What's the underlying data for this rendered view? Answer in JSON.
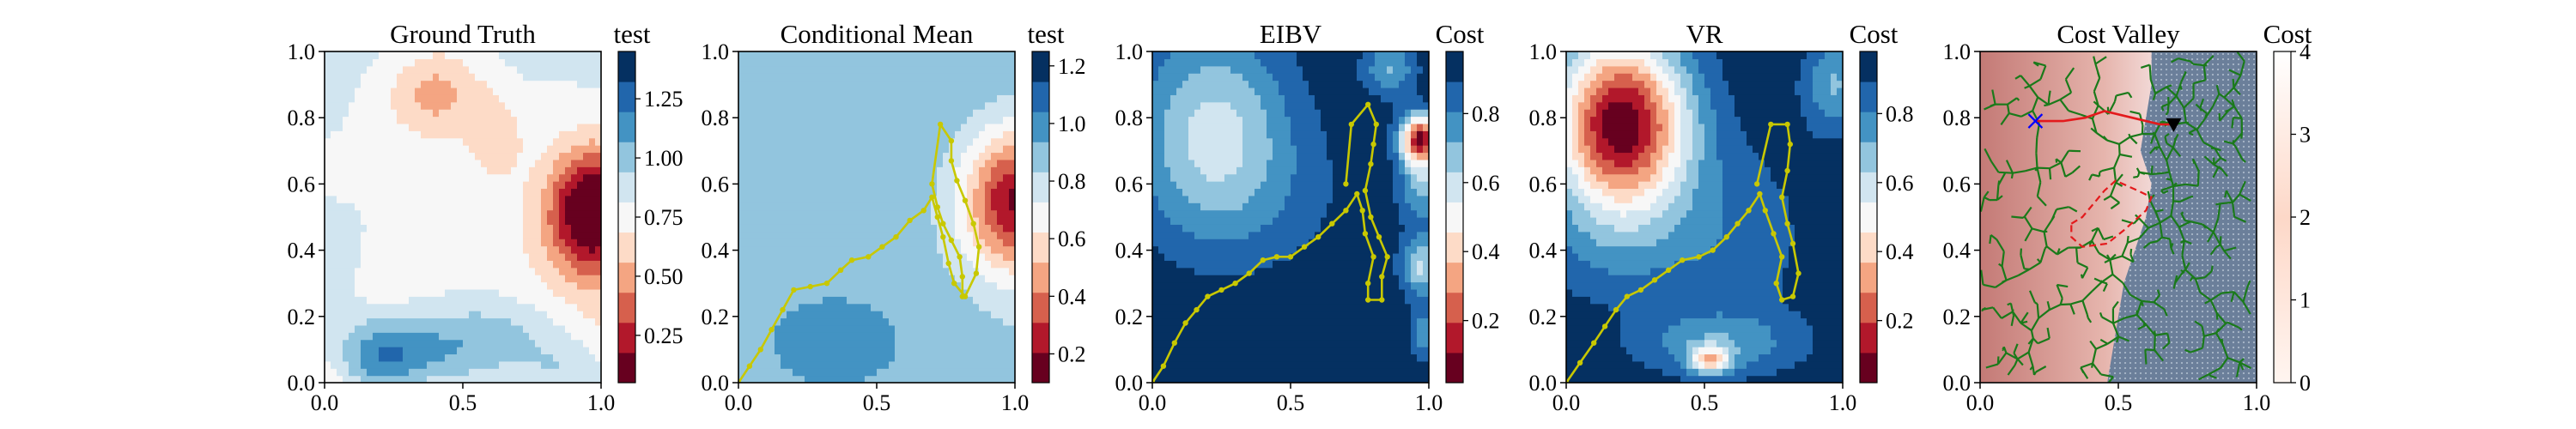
{
  "colors": {
    "rdbu": [
      "#67001f",
      "#b2182b",
      "#d6604d",
      "#f4a582",
      "#fddbc7",
      "#f7f7f7",
      "#d1e5f0",
      "#92c5de",
      "#4393c3",
      "#2166ac",
      "#053061"
    ],
    "path_yellow": "#c8c800",
    "tree_green": "#1a7a1a",
    "optimal_path_red": "#e31a1c",
    "target_marker": "#0000ff",
    "reds_light": "#f7e8e8",
    "reds_dark": "#c47a76",
    "obstacle_hatch": "#6b7f9a"
  },
  "chart_data": [
    {
      "type": "heatmap",
      "title": "Ground Truth",
      "colorbar_label": "test",
      "xlim": [
        0,
        1
      ],
      "ylim": [
        0,
        1
      ],
      "xticks": [
        "0.0",
        "0.5",
        "1.0"
      ],
      "yticks": [
        "0.0",
        "0.2",
        "0.4",
        "0.6",
        "0.8",
        "1.0"
      ],
      "colorbar_ticks": [
        "0.25",
        "0.50",
        "0.75",
        "1.00",
        "1.25"
      ],
      "colorbar_tick_values": [
        0.25,
        0.5,
        0.75,
        1.0,
        1.25
      ],
      "colorbar_range": [
        0.05,
        1.45
      ],
      "colormap": "RdBu",
      "field": {
        "bumps": [
          {
            "x": 0.97,
            "y": 0.52,
            "sx": 0.11,
            "sy": 0.13,
            "a": -0.85
          },
          {
            "x": 0.4,
            "y": 0.88,
            "sx": 0.12,
            "sy": 0.1,
            "a": -0.3
          },
          {
            "x": 0.62,
            "y": 0.75,
            "sx": 0.07,
            "sy": 0.09,
            "a": -0.2
          },
          {
            "x": 0.22,
            "y": 0.08,
            "sx": 0.14,
            "sy": 0.08,
            "a": 0.45
          },
          {
            "x": 0.55,
            "y": 0.12,
            "sx": 0.2,
            "sy": 0.1,
            "a": 0.35
          },
          {
            "x": 0.0,
            "y": 0.35,
            "sx": 0.12,
            "sy": 0.12,
            "a": 0.15
          },
          {
            "x": 0.88,
            "y": 0.02,
            "sx": 0.12,
            "sy": 0.08,
            "a": 0.2
          }
        ],
        "base": 0.78,
        "slope_y": 0.2,
        "noise": 0.05
      }
    },
    {
      "type": "heatmap",
      "title": "Conditional Mean",
      "colorbar_label": "test",
      "xlim": [
        0,
        1
      ],
      "ylim": [
        0,
        1
      ],
      "xticks": [
        "0.0",
        "0.5",
        "1.0"
      ],
      "yticks": [
        "0.0",
        "0.2",
        "0.4",
        "0.6",
        "0.8",
        "1.0"
      ],
      "colorbar_ticks": [
        "0.2",
        "0.4",
        "0.6",
        "0.8",
        "1.0",
        "1.2"
      ],
      "colorbar_tick_values": [
        0.2,
        0.4,
        0.6,
        0.8,
        1.0,
        1.2
      ],
      "colorbar_range": [
        0.1,
        1.25
      ],
      "colormap": "RdBu",
      "field": {
        "bumps": [
          {
            "x": 1.0,
            "y": 0.55,
            "sx": 0.13,
            "sy": 0.15,
            "a": -0.7
          },
          {
            "x": 0.35,
            "y": 0.1,
            "sx": 0.28,
            "sy": 0.16,
            "a": 0.12
          }
        ],
        "base": 0.88,
        "slope_y": 0.08,
        "noise": 0.0
      },
      "path": [
        [
          0,
          0
        ],
        [
          0.04,
          0.05
        ],
        [
          0.08,
          0.1
        ],
        [
          0.12,
          0.16
        ],
        [
          0.16,
          0.22
        ],
        [
          0.2,
          0.28
        ],
        [
          0.26,
          0.29
        ],
        [
          0.32,
          0.3
        ],
        [
          0.37,
          0.34
        ],
        [
          0.41,
          0.37
        ],
        [
          0.47,
          0.38
        ],
        [
          0.52,
          0.41
        ],
        [
          0.57,
          0.44
        ],
        [
          0.62,
          0.49
        ],
        [
          0.67,
          0.52
        ],
        [
          0.7,
          0.56
        ],
        [
          0.72,
          0.5
        ],
        [
          0.74,
          0.44
        ],
        [
          0.76,
          0.36
        ],
        [
          0.78,
          0.3
        ],
        [
          0.82,
          0.26
        ],
        [
          0.86,
          0.33
        ],
        [
          0.87,
          0.41
        ],
        [
          0.85,
          0.48
        ],
        [
          0.82,
          0.55
        ],
        [
          0.79,
          0.61
        ],
        [
          0.77,
          0.67
        ],
        [
          0.77,
          0.73
        ],
        [
          0.73,
          0.78
        ],
        [
          0.7,
          0.6
        ],
        [
          0.72,
          0.53
        ],
        [
          0.74,
          0.48
        ],
        [
          0.77,
          0.43
        ],
        [
          0.8,
          0.38
        ],
        [
          0.81,
          0.32
        ],
        [
          0.81,
          0.26
        ]
      ]
    },
    {
      "type": "heatmap",
      "title": "EIBV",
      "colorbar_label": "Cost",
      "xlim": [
        0,
        1
      ],
      "ylim": [
        0,
        1
      ],
      "xticks": [
        "0.0",
        "0.5",
        "1.0"
      ],
      "yticks": [
        "0.0",
        "0.2",
        "0.4",
        "0.6",
        "0.8",
        "1.0"
      ],
      "colorbar_ticks": [
        "0.2",
        "0.4",
        "0.6",
        "0.8"
      ],
      "colorbar_tick_values": [
        0.2,
        0.4,
        0.6,
        0.8
      ],
      "colorbar_range": [
        0.02,
        0.98
      ],
      "colormap": "RdBu",
      "field": {
        "bumps": [
          {
            "x": 0.22,
            "y": 0.77,
            "sx": 0.2,
            "sy": 0.22,
            "a": -0.35
          },
          {
            "x": 0.38,
            "y": 0.55,
            "sx": 0.3,
            "sy": 0.18,
            "a": -0.08
          },
          {
            "x": 0.97,
            "y": 0.74,
            "sx": 0.05,
            "sy": 0.05,
            "a": -0.75
          },
          {
            "x": 0.98,
            "y": 0.62,
            "sx": 0.06,
            "sy": 0.1,
            "a": -0.3
          },
          {
            "x": 0.97,
            "y": 0.35,
            "sx": 0.05,
            "sy": 0.06,
            "a": -0.35
          },
          {
            "x": 0.98,
            "y": 0.15,
            "sx": 0.04,
            "sy": 0.06,
            "a": -0.2
          },
          {
            "x": 0.86,
            "y": 0.95,
            "sx": 0.07,
            "sy": 0.06,
            "a": -0.25
          }
        ],
        "base": 0.97,
        "slope_y": 0.0,
        "noise": 0.0
      },
      "path": [
        [
          0,
          0
        ],
        [
          0.04,
          0.05
        ],
        [
          0.08,
          0.12
        ],
        [
          0.12,
          0.18
        ],
        [
          0.16,
          0.22
        ],
        [
          0.2,
          0.26
        ],
        [
          0.25,
          0.28
        ],
        [
          0.3,
          0.3
        ],
        [
          0.35,
          0.33
        ],
        [
          0.4,
          0.37
        ],
        [
          0.45,
          0.38
        ],
        [
          0.5,
          0.38
        ],
        [
          0.55,
          0.41
        ],
        [
          0.6,
          0.44
        ],
        [
          0.65,
          0.48
        ],
        [
          0.7,
          0.52
        ],
        [
          0.74,
          0.57
        ],
        [
          0.76,
          0.52
        ],
        [
          0.77,
          0.45
        ],
        [
          0.8,
          0.38
        ],
        [
          0.78,
          0.3
        ],
        [
          0.78,
          0.25
        ],
        [
          0.83,
          0.25
        ],
        [
          0.83,
          0.32
        ],
        [
          0.85,
          0.38
        ],
        [
          0.82,
          0.44
        ],
        [
          0.79,
          0.5
        ],
        [
          0.77,
          0.58
        ],
        [
          0.79,
          0.66
        ],
        [
          0.8,
          0.72
        ],
        [
          0.81,
          0.78
        ],
        [
          0.78,
          0.84
        ],
        [
          0.72,
          0.78
        ],
        [
          0.7,
          0.6
        ]
      ]
    },
    {
      "type": "heatmap",
      "title": "VR",
      "colorbar_label": "Cost",
      "xlim": [
        0,
        1
      ],
      "ylim": [
        0,
        1
      ],
      "xticks": [
        "0.0",
        "0.5",
        "1.0"
      ],
      "yticks": [
        "0.0",
        "0.2",
        "0.4",
        "0.6",
        "0.8",
        "1.0"
      ],
      "colorbar_ticks": [
        "0.2",
        "0.4",
        "0.6",
        "0.8"
      ],
      "colorbar_tick_values": [
        0.2,
        0.4,
        0.6,
        0.8
      ],
      "colorbar_range": [
        0.02,
        0.98
      ],
      "colormap": "RdBu",
      "field": {
        "bumps": [
          {
            "x": 0.2,
            "y": 0.78,
            "sx": 0.17,
            "sy": 0.19,
            "a": -0.92
          },
          {
            "x": 0.6,
            "y": 0.45,
            "sx": 0.2,
            "sy": 0.2,
            "a": -0.12
          },
          {
            "x": 0.15,
            "y": 0.4,
            "sx": 0.22,
            "sy": 0.12,
            "a": -0.1
          },
          {
            "x": 0.52,
            "y": 0.07,
            "sx": 0.05,
            "sy": 0.03,
            "a": -0.45
          },
          {
            "x": 0.55,
            "y": 0.12,
            "sx": 0.22,
            "sy": 0.07,
            "a": -0.2
          },
          {
            "x": 0.97,
            "y": 0.9,
            "sx": 0.08,
            "sy": 0.1,
            "a": -0.25
          }
        ],
        "base": 0.96,
        "slope_y": 0.0,
        "noise": 0.0
      },
      "path": [
        [
          0,
          0
        ],
        [
          0.05,
          0.06
        ],
        [
          0.1,
          0.12
        ],
        [
          0.14,
          0.17
        ],
        [
          0.18,
          0.22
        ],
        [
          0.22,
          0.26
        ],
        [
          0.27,
          0.28
        ],
        [
          0.32,
          0.31
        ],
        [
          0.37,
          0.34
        ],
        [
          0.42,
          0.37
        ],
        [
          0.48,
          0.38
        ],
        [
          0.53,
          0.4
        ],
        [
          0.58,
          0.44
        ],
        [
          0.62,
          0.48
        ],
        [
          0.66,
          0.52
        ],
        [
          0.7,
          0.57
        ],
        [
          0.72,
          0.52
        ],
        [
          0.75,
          0.45
        ],
        [
          0.78,
          0.38
        ],
        [
          0.76,
          0.3
        ],
        [
          0.78,
          0.25
        ],
        [
          0.82,
          0.26
        ],
        [
          0.84,
          0.33
        ],
        [
          0.82,
          0.42
        ],
        [
          0.8,
          0.48
        ],
        [
          0.78,
          0.56
        ],
        [
          0.8,
          0.64
        ],
        [
          0.81,
          0.72
        ],
        [
          0.8,
          0.78
        ],
        [
          0.74,
          0.78
        ],
        [
          0.69,
          0.6
        ]
      ]
    },
    {
      "type": "heatmap",
      "title": "Cost Valley",
      "colorbar_label": "Cost",
      "xlim": [
        0,
        1
      ],
      "ylim": [
        0,
        1
      ],
      "xticks": [
        "0.0",
        "0.5",
        "1.0"
      ],
      "yticks": [
        "0.0",
        "0.2",
        "0.4",
        "0.6",
        "0.8",
        "1.0"
      ],
      "colorbar_ticks": [
        "0",
        "1",
        "2",
        "3",
        "4"
      ],
      "colorbar_tick_values": [
        0,
        1,
        2,
        3,
        4
      ],
      "colorbar_range": [
        0,
        4
      ],
      "colormap": "Reds",
      "start": [
        0.7,
        0.78
      ],
      "target": [
        0.2,
        0.79
      ],
      "optimal_path": [
        [
          0.7,
          0.78
        ],
        [
          0.65,
          0.78
        ],
        [
          0.55,
          0.8
        ],
        [
          0.45,
          0.82
        ],
        [
          0.38,
          0.8
        ],
        [
          0.3,
          0.79
        ],
        [
          0.2,
          0.79
        ]
      ],
      "obstacle": [
        [
          0.33,
          0.48
        ],
        [
          0.37,
          0.5
        ],
        [
          0.45,
          0.58
        ],
        [
          0.49,
          0.61
        ],
        [
          0.57,
          0.58
        ],
        [
          0.62,
          0.56
        ],
        [
          0.6,
          0.52
        ],
        [
          0.52,
          0.46
        ],
        [
          0.46,
          0.42
        ],
        [
          0.37,
          0.41
        ],
        [
          0.33,
          0.44
        ]
      ]
    }
  ]
}
